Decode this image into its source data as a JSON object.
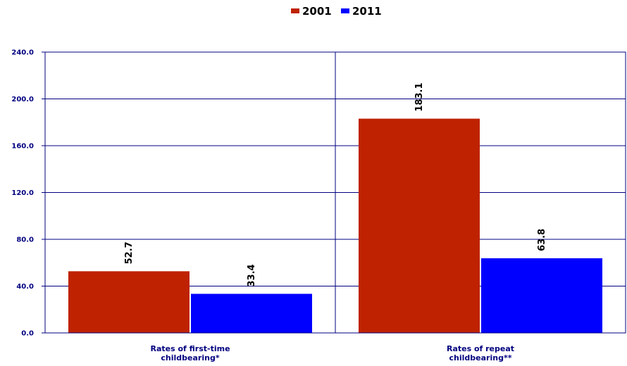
{
  "chart_data": {
    "type": "bar",
    "categories": [
      [
        "Rates of first-time",
        "childbearing*"
      ],
      [
        "Rates of repeat",
        "childbearing**"
      ]
    ],
    "series": [
      {
        "name": "2001",
        "values": [
          52.7,
          183.1
        ],
        "labels": [
          "52.7",
          "183.1"
        ],
        "color": "#BF2200"
      },
      {
        "name": "2011",
        "values": [
          33.4,
          63.8
        ],
        "labels": [
          "33.4",
          "63.8"
        ],
        "color": "#0000FF"
      }
    ],
    "y_ticks": [
      0,
      40,
      80,
      120,
      160,
      200,
      240
    ],
    "y_tick_labels": [
      "0.0",
      "40.0",
      "80.0",
      "120.0",
      "160.0",
      "200.0",
      "240.0"
    ],
    "ylim": [
      0,
      240
    ],
    "grid": true,
    "legend_position": "top-center",
    "axis_color": "#000080"
  }
}
